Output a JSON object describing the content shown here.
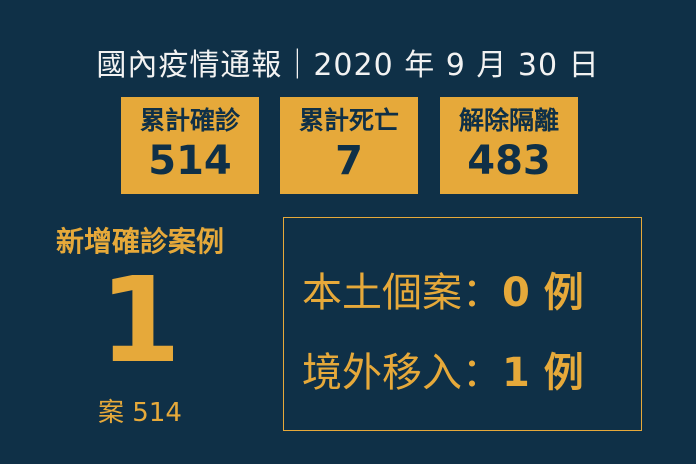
{
  "title": "國內疫情通報｜2020 年 9 月 30 日",
  "stats": [
    {
      "label": "累計確診",
      "value": "514"
    },
    {
      "label": "累計死亡",
      "value": "7"
    },
    {
      "label": "解除隔離",
      "value": "483"
    }
  ],
  "new_cases": {
    "label": "新增確診案例",
    "count": "1",
    "case_id": "案 514"
  },
  "breakdown": [
    {
      "label": "本土個案：",
      "value": "0 例"
    },
    {
      "label": "境外移入：",
      "value": "1 例"
    }
  ],
  "colors": {
    "background": "#0f3047",
    "accent": "#e6a93a"
  }
}
